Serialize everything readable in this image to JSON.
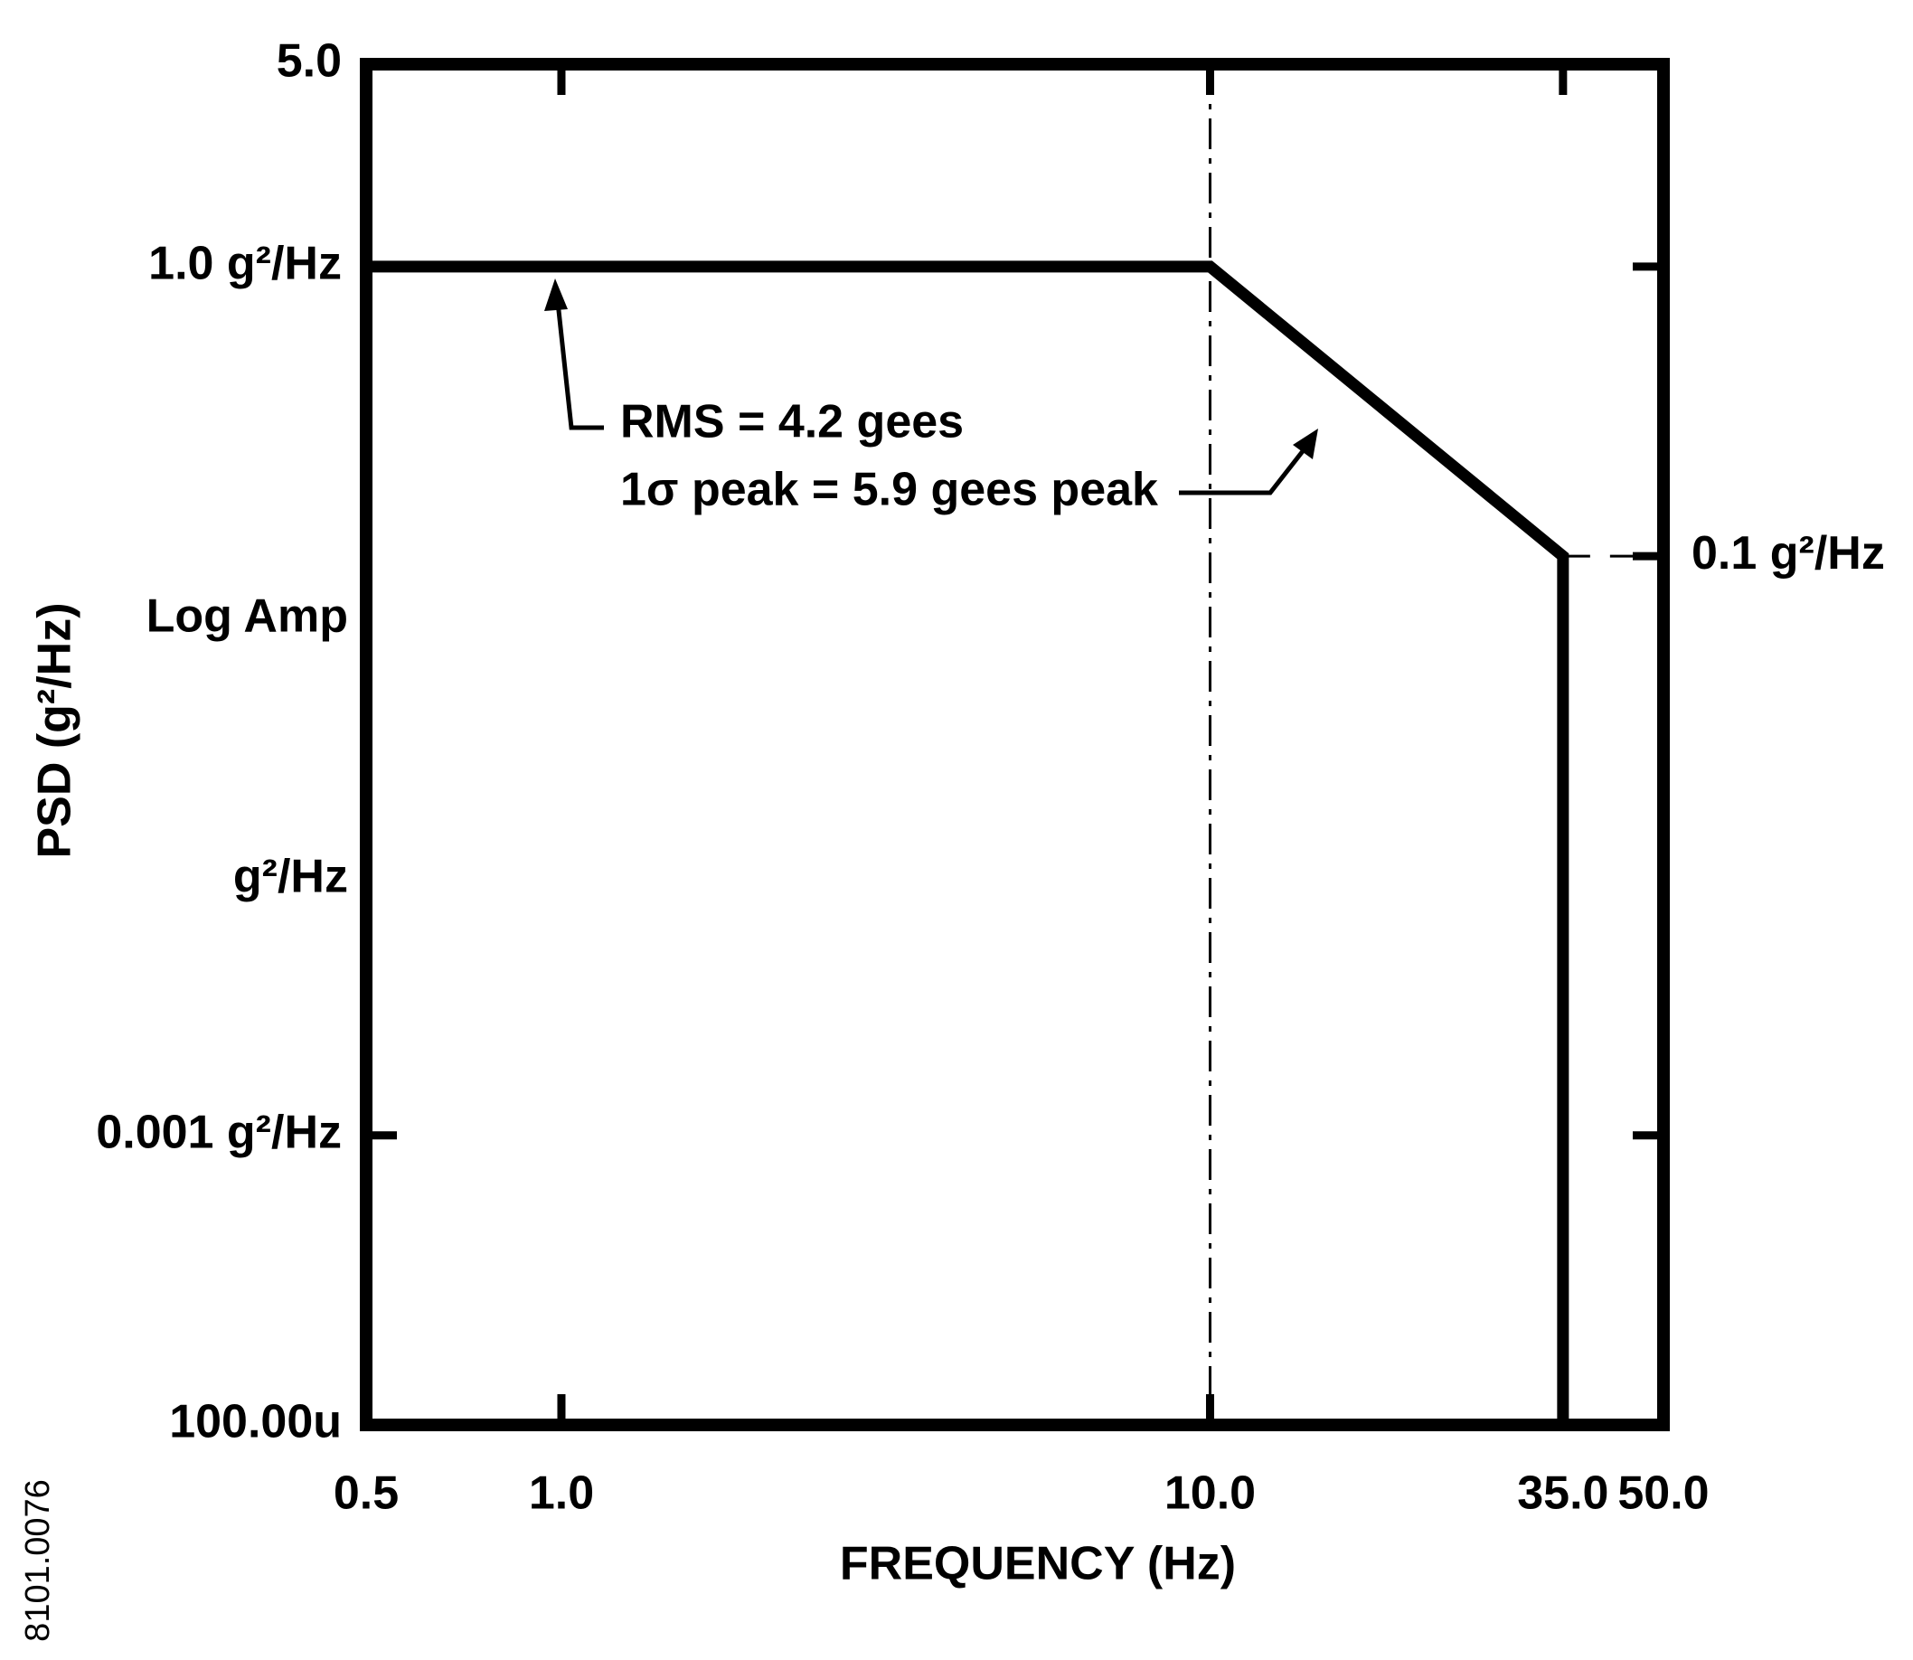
{
  "chart_data": {
    "type": "line",
    "xlabel": "FREQUENCY (Hz)",
    "ylabel": "PSD (g²/Hz)",
    "figure_id": "8101.0076",
    "x_scale": "log",
    "y_scale": "log",
    "grid": false,
    "xlim": [
      0.5,
      50
    ],
    "ylim": [
      0.0001,
      5
    ],
    "xticks": [
      0.5,
      {
        "value": 1,
        "label": "1.0"
      },
      {
        "value": 10,
        "label": "10.0"
      },
      {
        "value": 35,
        "label": "35.0"
      },
      {
        "value": 50,
        "label": "50.0"
      }
    ],
    "yticks": [
      {
        "value": 5,
        "label": "5.0"
      },
      {
        "value": 1,
        "label": "1.0 g²/Hz"
      },
      {
        "value": 0.001,
        "label": "0.001 g²/Hz"
      },
      {
        "value": 0.0001,
        "label": "100.00u"
      }
    ],
    "right_ticks": [
      {
        "value": 0.1,
        "label": "0.1 g²/Hz"
      }
    ],
    "axis_notes": [
      "Log Amp",
      "g²/Hz"
    ],
    "annotations": [
      "RMS = 4.2 gees",
      "1σ peak = 5.9 gees peak"
    ],
    "vlines": [
      10
    ],
    "series": [
      {
        "color": "#000000",
        "x": [
          0.5,
          0.5,
          10,
          35,
          35
        ],
        "values": [
          0.0001,
          1,
          1,
          0.1,
          0.0001
        ]
      }
    ]
  }
}
